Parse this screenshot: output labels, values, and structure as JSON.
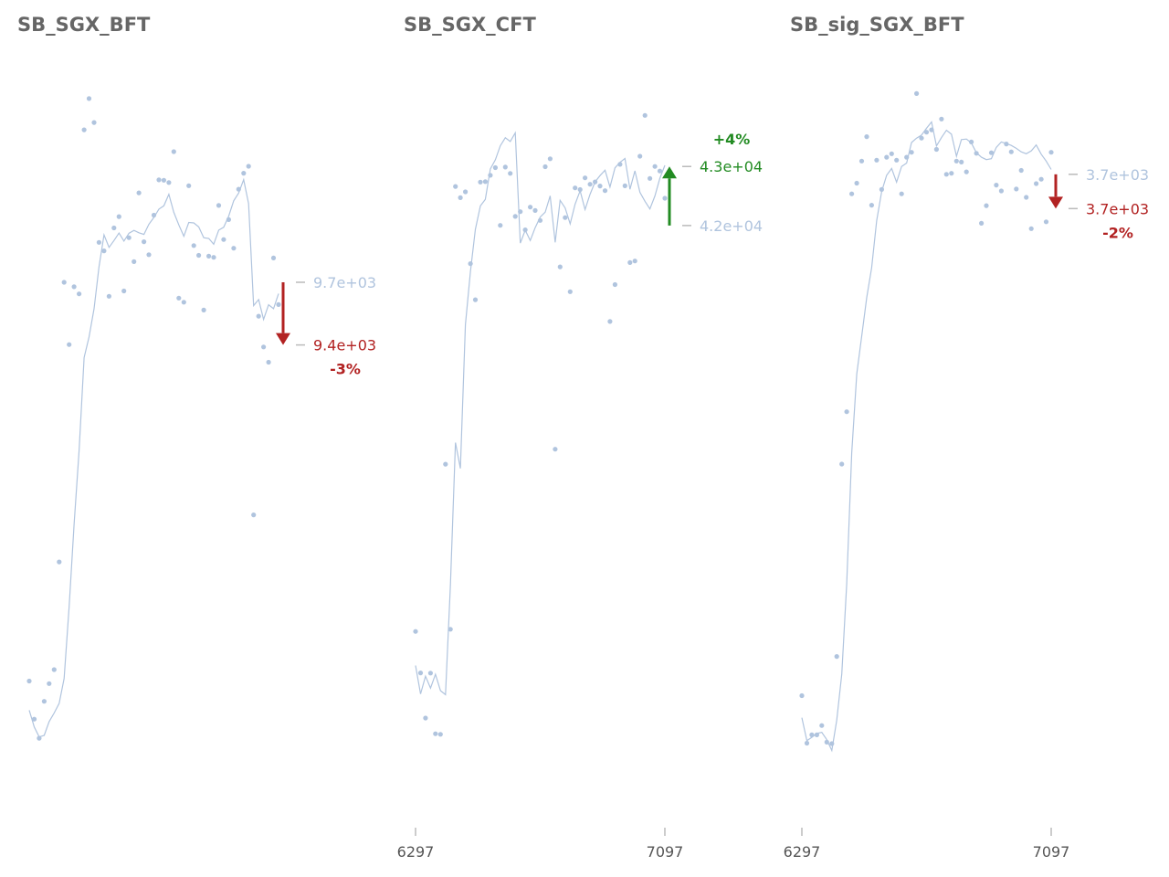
{
  "colors": {
    "series": "#b0c4de",
    "down": "#b22222",
    "up": "#228b22",
    "title": "#666666",
    "tick": "#555555"
  },
  "chart_data": [
    {
      "type": "scatter",
      "title": "SB_SGX_BFT",
      "xlim": [
        6297,
        7097
      ],
      "ylim": [
        7200,
        10700
      ],
      "xticks": [],
      "x": [
        6297,
        6313,
        6329,
        6345,
        6361,
        6377,
        6393,
        6409,
        6425,
        6441,
        6457,
        6473,
        6489,
        6505,
        6521,
        6537,
        6553,
        6569,
        6585,
        6601,
        6617,
        6633,
        6649,
        6665,
        6681,
        6697,
        6713,
        6729,
        6745,
        6761,
        6777,
        6793,
        6809,
        6825,
        6841,
        6857,
        6873,
        6889,
        6905,
        6921,
        6937,
        6953,
        6969,
        6985,
        7001,
        7017,
        7033,
        7049,
        7065,
        7081,
        7097
      ],
      "scatter": [
        7743,
        7555,
        7461,
        7643,
        7730,
        7799,
        8330,
        9709,
        9402,
        9687,
        9652,
        10461,
        10615,
        10497,
        9906,
        9864,
        9640,
        9977,
        10033,
        9666,
        9929,
        9811,
        10150,
        9909,
        9845,
        10040,
        10214,
        10212,
        10201,
        10353,
        9631,
        9611,
        10185,
        9890,
        9842,
        9572,
        9838,
        9832,
        10088,
        9920,
        10018,
        9877,
        10168,
        10247,
        10281,
        8562,
        9542,
        9390,
        9315,
        9829,
        9599
      ],
      "trend": [
        7599,
        7516,
        7467,
        7475,
        7543,
        7585,
        7633,
        7755,
        8109,
        8514,
        8879,
        9338,
        9439,
        9579,
        9785,
        9943,
        9881,
        9915,
        9952,
        9912,
        9951,
        9965,
        9953,
        9945,
        9995,
        10029,
        10070,
        10086,
        10143,
        10054,
        9992,
        9936,
        10004,
        10002,
        9982,
        9929,
        9925,
        9897,
        9966,
        9980,
        10035,
        10111,
        10149,
        10215,
        10097,
        9594,
        9624,
        9526,
        9598,
        9579,
        9653
      ],
      "last_label": "9.7e+03",
      "target_label": "9.4e+03",
      "change_label": "-3%",
      "last_value": 9709,
      "target_value": 9400,
      "direction": "down"
    },
    {
      "type": "scatter",
      "title": "SB_SGX_CFT",
      "xlim": [
        6297,
        7097
      ],
      "ylim": [
        32000,
        44500
      ],
      "xticks": [
        "6297",
        "7097"
      ],
      "x": [
        6297,
        6313,
        6329,
        6345,
        6361,
        6377,
        6393,
        6409,
        6425,
        6441,
        6457,
        6473,
        6489,
        6505,
        6521,
        6537,
        6553,
        6569,
        6585,
        6601,
        6617,
        6633,
        6649,
        6665,
        6681,
        6697,
        6713,
        6729,
        6745,
        6761,
        6777,
        6793,
        6809,
        6825,
        6841,
        6857,
        6873,
        6889,
        6905,
        6921,
        6937,
        6953,
        6969,
        6985,
        7001,
        7017,
        7033,
        7049,
        7065,
        7081,
        7097
      ],
      "scatter": [
        34812,
        34081,
        33287,
        34078,
        33010,
        33001,
        37757,
        34851,
        42649,
        42451,
        42554,
        41289,
        40653,
        42726,
        42734,
        42845,
        42980,
        41963,
        42989,
        42878,
        42120,
        42204,
        41884,
        42285,
        42225,
        42050,
        42996,
        43136,
        38022,
        41232,
        42100,
        40795,
        42622,
        42593,
        42800,
        42687,
        42729,
        42656,
        42575,
        40270,
        40920,
        43037,
        42660,
        41308,
        41335,
        43181,
        43900,
        42790,
        43000,
        42920,
        42440
      ],
      "trend": [
        34212,
        33712,
        34024,
        33815,
        34057,
        33770,
        33699,
        35632,
        38138,
        37684,
        40214,
        41149,
        41892,
        42305,
        42422,
        42955,
        43118,
        43364,
        43506,
        43440,
        43592,
        41651,
        41878,
        41696,
        41923,
        42109,
        42197,
        42482,
        41663,
        42404,
        42271,
        41989,
        42337,
        42573,
        42242,
        42512,
        42728,
        42839,
        42934,
        42638,
        42976,
        43073,
        43141,
        42599,
        42923,
        42545,
        42387,
        42252,
        42481,
        42791,
        43020
      ],
      "last_label": "4.2e+04",
      "target_label": "4.3e+04",
      "change_label": "+4%",
      "last_value": 41960,
      "target_value": 43000,
      "direction": "up"
    },
    {
      "type": "scatter",
      "title": "SB_sig_SGX_BFT",
      "xlim": [
        6297,
        7097
      ],
      "ylim": [
        2500,
        3950
      ],
      "xticks": [
        "6297",
        "7097"
      ],
      "x": [
        6297,
        6313,
        6329,
        6345,
        6361,
        6377,
        6393,
        6409,
        6425,
        6441,
        6457,
        6473,
        6489,
        6505,
        6521,
        6537,
        6553,
        6569,
        6585,
        6601,
        6617,
        6633,
        6649,
        6665,
        6681,
        6697,
        6713,
        6729,
        6745,
        6761,
        6777,
        6793,
        6809,
        6825,
        6841,
        6857,
        6873,
        6889,
        6905,
        6921,
        6937,
        6953,
        6969,
        6985,
        7001,
        7017,
        7033,
        7049,
        7065,
        7081,
        7097
      ],
      "scatter": [
        2695,
        2598,
        2615,
        2615,
        2634,
        2600,
        2597,
        2775,
        3168,
        3275,
        3720,
        3742,
        3787,
        3837,
        3697,
        3789,
        3729,
        3795,
        3802,
        3789,
        3720,
        3795,
        3805,
        3925,
        3834,
        3846,
        3851,
        3811,
        3873,
        3760,
        3762,
        3787,
        3785,
        3765,
        3826,
        3803,
        3660,
        3696,
        3804,
        3738,
        3726,
        3822,
        3806,
        3730,
        3768,
        3713,
        3649,
        3741,
        3750,
        3663,
        3805
      ],
      "trend": [
        2650,
        2603,
        2610,
        2618,
        2620,
        2605,
        2583,
        2645,
        2739,
        2923,
        3191,
        3352,
        3429,
        3508,
        3569,
        3665,
        3725,
        3758,
        3772,
        3744,
        3776,
        3783,
        3825,
        3834,
        3840,
        3854,
        3867,
        3818,
        3835,
        3850,
        3842,
        3797,
        3831,
        3832,
        3824,
        3804,
        3795,
        3790,
        3792,
        3815,
        3826,
        3823,
        3819,
        3813,
        3806,
        3802,
        3808,
        3820,
        3801,
        3787,
        3770
      ],
      "last_label": "3.7e+03",
      "target_label": "3.7e+03",
      "change_label": "-2%",
      "last_value": 3760,
      "target_value": 3690,
      "direction": "down"
    }
  ]
}
